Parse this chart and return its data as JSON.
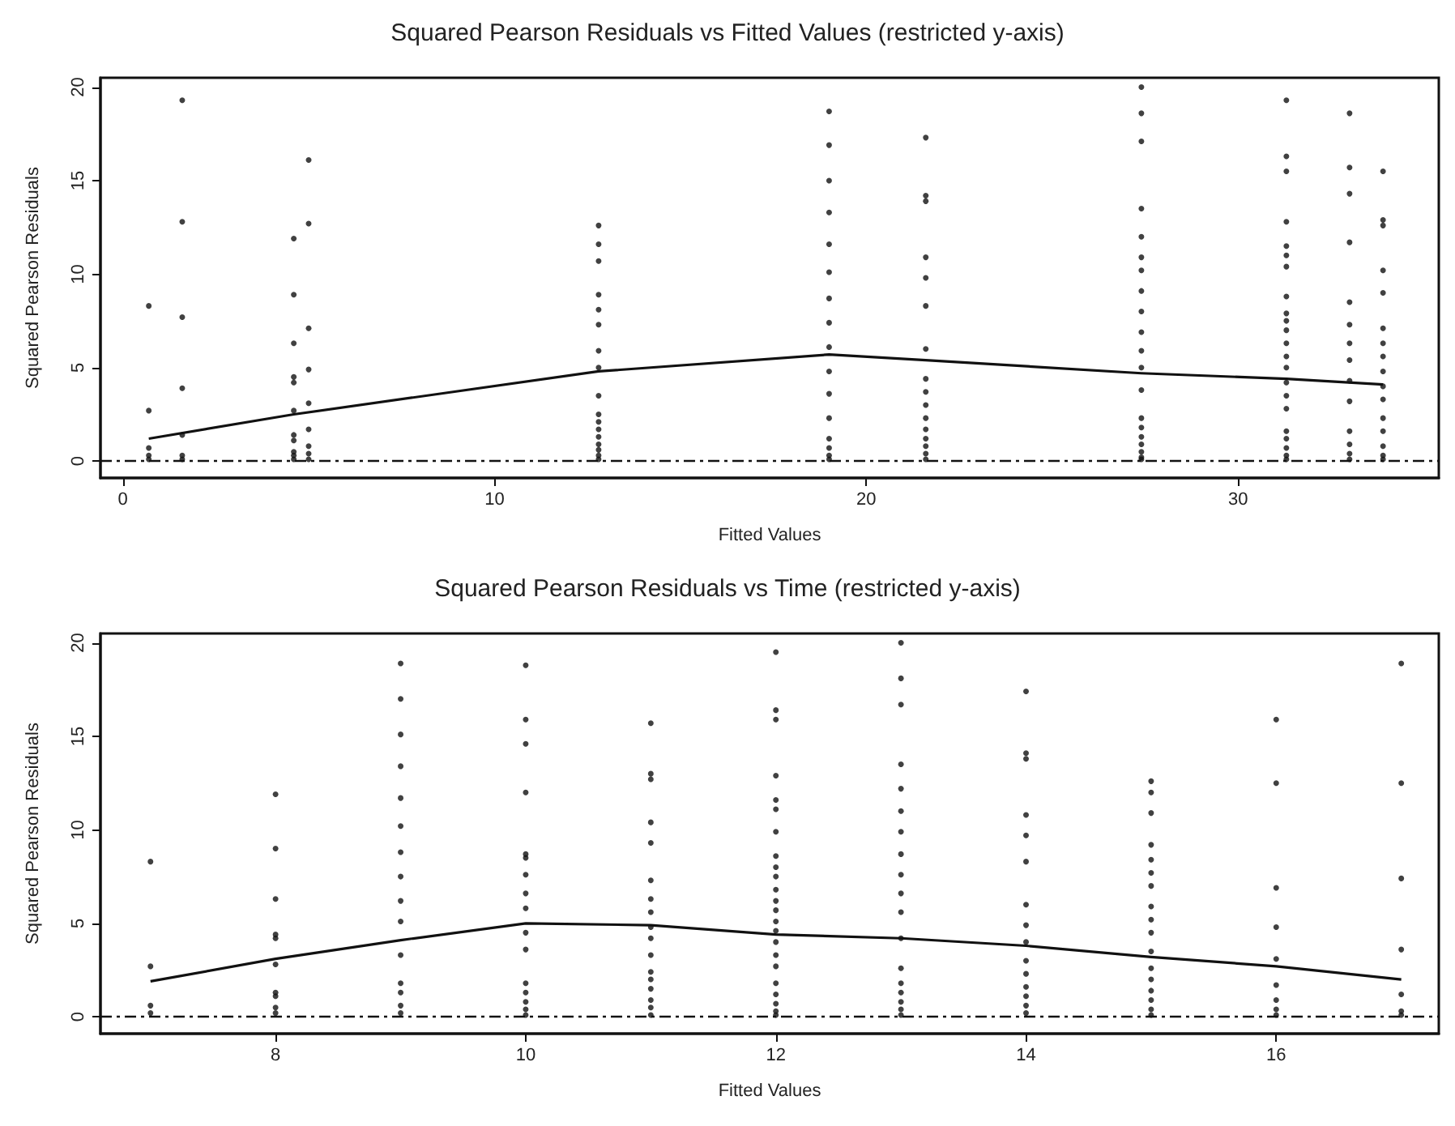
{
  "chart_data": [
    {
      "type": "scatter",
      "title": "Squared Pearson Residuals vs Fitted Values (restricted y-axis)",
      "xlabel": "Fitted Values",
      "ylabel": "Squared Pearson Residuals",
      "xlim": [
        -0.6,
        35.4
      ],
      "ylim": [
        -0.9,
        20.5
      ],
      "xticks": [
        0,
        10,
        20,
        30
      ],
      "yticks": [
        0,
        5,
        10,
        15,
        20
      ],
      "grid": false,
      "series": [
        {
          "marker": "circle",
          "color": "#111111",
          "x": [
            0.7,
            0.7,
            0.7,
            0.7,
            0.7,
            1.6,
            1.6,
            1.6,
            1.6,
            1.6,
            1.6,
            1.6,
            4.6,
            4.6,
            4.6,
            4.6,
            4.6,
            4.6,
            4.6,
            4.6,
            4.6,
            4.6,
            4.6,
            5.0,
            5.0,
            5.0,
            5.0,
            5.0,
            5.0,
            5.0,
            5.0,
            5.0,
            12.8,
            12.8,
            12.8,
            12.8,
            12.8,
            12.8,
            12.8,
            12.8,
            12.8,
            12.8,
            12.8,
            12.8,
            12.8,
            12.8,
            12.8,
            12.8,
            12.8,
            19.0,
            19.0,
            19.0,
            19.0,
            19.0,
            19.0,
            19.0,
            19.0,
            19.0,
            19.0,
            19.0,
            19.0,
            19.0,
            19.0,
            19.0,
            19.0,
            21.6,
            21.6,
            21.6,
            21.6,
            21.6,
            21.6,
            21.6,
            21.6,
            21.6,
            21.6,
            21.6,
            21.6,
            21.6,
            21.6,
            21.6,
            21.6,
            27.4,
            27.4,
            27.4,
            27.4,
            27.4,
            27.4,
            27.4,
            27.4,
            27.4,
            27.4,
            27.4,
            27.4,
            27.4,
            27.4,
            27.4,
            27.4,
            27.4,
            27.4,
            27.4,
            27.4,
            31.3,
            31.3,
            31.3,
            31.3,
            31.3,
            31.3,
            31.3,
            31.3,
            31.3,
            31.3,
            31.3,
            31.3,
            31.3,
            31.3,
            31.3,
            31.3,
            31.3,
            31.3,
            31.3,
            31.3,
            31.3,
            31.3,
            33.0,
            33.0,
            33.0,
            33.0,
            33.0,
            33.0,
            33.0,
            33.0,
            33.0,
            33.0,
            33.0,
            33.0,
            33.0,
            33.0,
            33.9,
            33.9,
            33.9,
            33.9,
            33.9,
            33.9,
            33.9,
            33.9,
            33.9,
            33.9,
            33.9,
            33.9,
            33.9,
            33.9,
            33.9,
            33.9
          ],
          "values": [
            8.3,
            2.7,
            0.7,
            0.3,
            0.1,
            19.3,
            12.8,
            7.7,
            3.9,
            1.4,
            0.3,
            0.1,
            11.9,
            8.9,
            6.3,
            4.5,
            4.2,
            2.7,
            1.4,
            1.1,
            0.5,
            0.3,
            0.1,
            16.1,
            12.7,
            7.1,
            4.9,
            3.1,
            1.7,
            0.8,
            0.4,
            0.1,
            12.6,
            11.6,
            10.7,
            8.9,
            8.1,
            7.3,
            5.9,
            5.0,
            3.5,
            2.5,
            2.1,
            1.7,
            1.3,
            0.9,
            0.6,
            0.3,
            0.1,
            18.7,
            16.9,
            15.0,
            13.3,
            11.6,
            10.1,
            8.7,
            7.4,
            6.1,
            4.8,
            3.6,
            2.3,
            1.2,
            0.7,
            0.3,
            0.1,
            17.3,
            14.2,
            13.9,
            10.9,
            9.8,
            8.3,
            6.0,
            4.4,
            3.7,
            3.0,
            2.3,
            1.7,
            1.2,
            0.8,
            0.4,
            0.1,
            20.0,
            18.6,
            17.1,
            13.5,
            12.0,
            10.9,
            10.2,
            9.1,
            8.0,
            6.9,
            5.9,
            5.0,
            3.8,
            2.3,
            1.8,
            1.3,
            0.9,
            0.5,
            0.2,
            0.1,
            19.3,
            16.3,
            15.5,
            12.8,
            11.5,
            11.0,
            10.4,
            8.8,
            7.9,
            7.5,
            7.0,
            6.3,
            5.6,
            5.0,
            4.2,
            3.5,
            2.8,
            1.6,
            1.2,
            0.7,
            0.3,
            0.1,
            18.6,
            15.7,
            14.3,
            11.7,
            8.5,
            7.3,
            6.3,
            5.4,
            4.3,
            3.2,
            1.6,
            0.9,
            0.4,
            0.1,
            15.5,
            12.9,
            12.6,
            10.2,
            9.0,
            7.1,
            6.3,
            5.6,
            4.8,
            4.0,
            3.3,
            2.3,
            1.6,
            0.8,
            0.3,
            0.1
          ]
        },
        {
          "type": "line",
          "marker": "none",
          "color": "#111111",
          "line_style": "solid",
          "x": [
            0.7,
            4.6,
            12.8,
            19.0,
            21.6,
            27.4,
            31.3,
            33.9
          ],
          "values": [
            1.2,
            2.5,
            4.8,
            5.7,
            5.4,
            4.7,
            4.4,
            4.1
          ]
        }
      ],
      "ref_lines": [
        {
          "axis": "y",
          "value": 0,
          "line_style": "dashed",
          "color": "#111111"
        }
      ]
    },
    {
      "type": "scatter",
      "title": "Squared Pearson Residuals vs Time (restricted y-axis)",
      "xlabel": "Fitted Values",
      "ylabel": "Squared Pearson Residuals",
      "xlim": [
        6.6,
        17.3
      ],
      "ylim": [
        -0.9,
        20.5
      ],
      "xticks": [
        8,
        10,
        12,
        14,
        16
      ],
      "yticks": [
        0,
        5,
        10,
        15,
        20
      ],
      "grid": false,
      "series": [
        {
          "marker": "circle",
          "color": "#111111",
          "x": [
            7,
            7,
            7,
            7,
            8,
            8,
            8,
            8,
            8,
            8,
            8,
            8,
            8,
            8,
            9,
            9,
            9,
            9,
            9,
            9,
            9,
            9,
            9,
            9,
            9,
            9,
            9,
            9,
            9,
            10,
            10,
            10,
            10,
            10,
            10,
            10,
            10,
            10,
            10,
            10,
            10,
            10,
            10,
            10,
            10,
            11,
            11,
            11,
            11,
            11,
            11,
            11,
            11,
            11,
            11,
            11,
            11,
            11,
            11,
            11,
            11,
            11,
            12,
            12,
            12,
            12,
            12,
            12,
            12,
            12,
            12,
            12,
            12,
            12,
            12,
            12,
            12,
            12,
            12,
            12,
            12,
            12,
            12,
            12,
            12,
            13,
            13,
            13,
            13,
            13,
            13,
            13,
            13,
            13,
            13,
            13,
            13,
            13,
            13,
            13,
            13,
            13,
            13,
            14,
            14,
            14,
            14,
            14,
            14,
            14,
            14,
            14,
            14,
            14,
            14,
            14,
            14,
            14,
            15,
            15,
            15,
            15,
            15,
            15,
            15,
            15,
            15,
            15,
            15,
            15,
            15,
            15,
            15,
            15,
            15,
            16,
            16,
            16,
            16,
            16,
            16,
            16,
            16,
            16,
            17,
            17,
            17,
            17,
            17,
            17,
            17
          ],
          "values": [
            8.3,
            2.7,
            0.6,
            0.2,
            11.9,
            9.0,
            6.3,
            4.4,
            4.2,
            2.8,
            1.3,
            1.1,
            0.5,
            0.2,
            18.9,
            17.0,
            15.1,
            13.4,
            11.7,
            10.2,
            8.8,
            7.5,
            6.2,
            5.1,
            3.3,
            1.8,
            1.3,
            0.6,
            0.2,
            18.8,
            15.9,
            14.6,
            12.0,
            8.7,
            8.5,
            7.6,
            6.6,
            5.8,
            4.5,
            3.6,
            1.8,
            1.3,
            0.8,
            0.4,
            0.1,
            15.7,
            13.0,
            12.7,
            10.4,
            9.3,
            7.3,
            6.3,
            5.6,
            4.8,
            4.2,
            3.3,
            2.4,
            2.0,
            1.5,
            0.9,
            0.5,
            0.1,
            19.5,
            16.4,
            15.9,
            12.9,
            11.6,
            11.1,
            9.9,
            8.6,
            8.0,
            7.5,
            6.8,
            6.2,
            5.7,
            5.1,
            4.6,
            4.0,
            3.3,
            2.7,
            1.8,
            1.2,
            0.7,
            0.3,
            0.1,
            20.0,
            18.1,
            16.7,
            13.5,
            12.2,
            11.0,
            9.9,
            8.7,
            7.6,
            6.6,
            5.6,
            4.2,
            2.6,
            1.8,
            1.3,
            0.8,
            0.4,
            0.1,
            17.4,
            14.1,
            13.8,
            10.8,
            9.7,
            8.3,
            6.0,
            4.9,
            4.0,
            3.0,
            2.3,
            1.6,
            1.1,
            0.6,
            0.2,
            12.6,
            12.0,
            10.9,
            9.2,
            8.4,
            7.7,
            7.0,
            5.9,
            5.2,
            4.5,
            3.5,
            2.6,
            2.0,
            1.4,
            0.9,
            0.4,
            0.1,
            15.9,
            12.5,
            6.9,
            4.8,
            3.1,
            1.7,
            0.9,
            0.4,
            0.1,
            18.9,
            12.5,
            7.4,
            3.6,
            1.2,
            0.3,
            0.1
          ]
        },
        {
          "type": "line",
          "marker": "none",
          "color": "#111111",
          "line_style": "solid",
          "x": [
            7,
            8,
            9,
            10,
            11,
            12,
            13,
            14,
            15,
            16,
            17
          ],
          "values": [
            1.9,
            3.1,
            4.1,
            5.0,
            4.9,
            4.4,
            4.2,
            3.8,
            3.2,
            2.7,
            2.0
          ]
        }
      ],
      "ref_lines": [
        {
          "axis": "y",
          "value": 0,
          "line_style": "dashed",
          "color": "#111111"
        }
      ]
    }
  ]
}
